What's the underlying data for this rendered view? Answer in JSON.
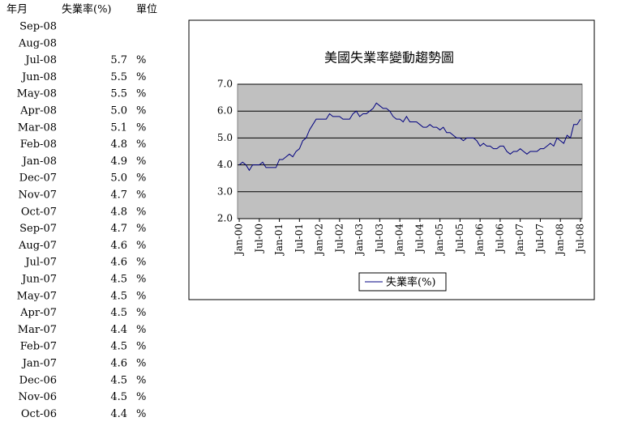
{
  "table": {
    "header": [
      "年月",
      "失業率(%)",
      "單位"
    ],
    "rows": [
      [
        "Sep-08"
      ],
      [
        "Aug-08"
      ],
      [
        "Jul-08",
        "5.7",
        "%"
      ],
      [
        "Jun-08",
        "5.5",
        "%"
      ],
      [
        "May-08",
        "5.5",
        "%"
      ],
      [
        "Apr-08",
        "5.0",
        "%"
      ],
      [
        "Mar-08",
        "5.1",
        "%"
      ],
      [
        "Feb-08",
        "4.8",
        "%"
      ],
      [
        "Jan-08",
        "4.9",
        "%"
      ],
      [
        "Dec-07",
        "5.0",
        "%"
      ],
      [
        "Nov-07",
        "4.7",
        "%"
      ],
      [
        "Oct-07",
        "4.8",
        "%"
      ],
      [
        "Sep-07",
        "4.7",
        "%"
      ],
      [
        "Aug-07",
        "4.6",
        "%"
      ],
      [
        "Jul-07",
        "4.6",
        "%"
      ],
      [
        "Jun-07",
        "4.5",
        "%"
      ],
      [
        "May-07",
        "4.5",
        "%"
      ],
      [
        "Apr-07",
        "4.5",
        "%"
      ],
      [
        "Mar-07",
        "4.4",
        "%"
      ],
      [
        "Feb-07",
        "4.5",
        "%"
      ],
      [
        "Jan-07",
        "4.6",
        "%"
      ],
      [
        "Dec-06",
        "4.5",
        "%"
      ],
      [
        "Nov-06",
        "4.5",
        "%"
      ],
      [
        "Oct-06",
        "4.4",
        "%"
      ]
    ]
  },
  "chart_data": {
    "type": "line",
    "title": "美國失業率變動趨勢圖",
    "categories": [
      "Jan-00",
      null,
      null,
      null,
      null,
      null,
      "Jul-00",
      null,
      null,
      null,
      null,
      null,
      "Jan-01",
      null,
      null,
      null,
      null,
      null,
      "Jul-01",
      null,
      null,
      null,
      null,
      null,
      "Jan-02",
      null,
      null,
      null,
      null,
      null,
      "Jul-02",
      null,
      null,
      null,
      null,
      null,
      "Jan-03",
      null,
      null,
      null,
      null,
      null,
      "Jul-03",
      null,
      null,
      null,
      null,
      null,
      "Jan-04",
      null,
      null,
      null,
      null,
      null,
      "Jul-04",
      null,
      null,
      null,
      null,
      null,
      "Jan-05",
      null,
      null,
      null,
      null,
      null,
      "Jul-05",
      null,
      null,
      null,
      null,
      null,
      "Jan-06",
      null,
      null,
      null,
      null,
      null,
      "Jul-06",
      null,
      null,
      null,
      null,
      null,
      "Jan-07",
      null,
      null,
      null,
      null,
      null,
      "Jul-07",
      null,
      null,
      null,
      null,
      null,
      "Jan-08",
      null,
      null,
      null,
      null,
      null,
      "Jul-08"
    ],
    "series": [
      {
        "name": "失業率(%)",
        "color": "#000080",
        "values": [
          4.0,
          4.1,
          4.0,
          3.8,
          4.0,
          4.0,
          4.0,
          4.1,
          3.9,
          3.9,
          3.9,
          3.9,
          4.2,
          4.2,
          4.3,
          4.4,
          4.3,
          4.5,
          4.6,
          4.9,
          5.0,
          5.3,
          5.5,
          5.7,
          5.7,
          5.7,
          5.7,
          5.9,
          5.8,
          5.8,
          5.8,
          5.7,
          5.7,
          5.7,
          5.9,
          6.0,
          5.8,
          5.9,
          5.9,
          6.0,
          6.1,
          6.3,
          6.2,
          6.1,
          6.1,
          6.0,
          5.8,
          5.7,
          5.7,
          5.6,
          5.8,
          5.6,
          5.6,
          5.6,
          5.5,
          5.4,
          5.4,
          5.5,
          5.4,
          5.4,
          5.3,
          5.4,
          5.2,
          5.2,
          5.1,
          5.0,
          5.0,
          4.9,
          5.0,
          5.0,
          5.0,
          4.9,
          4.7,
          4.8,
          4.7,
          4.7,
          4.6,
          4.6,
          4.7,
          4.7,
          4.5,
          4.4,
          4.5,
          4.5,
          4.6,
          4.5,
          4.4,
          4.5,
          4.5,
          4.5,
          4.6,
          4.6,
          4.7,
          4.8,
          4.7,
          5.0,
          4.9,
          4.8,
          5.1,
          5.0,
          5.5,
          5.5,
          5.7
        ]
      }
    ],
    "ylim": [
      2,
      7
    ],
    "yticks": [
      {
        "value": 2,
        "label": "2.0"
      },
      {
        "value": 3,
        "label": "3.0"
      },
      {
        "value": 4,
        "label": "4.0"
      },
      {
        "value": 5,
        "label": "5.0"
      },
      {
        "value": 6,
        "label": "6.0"
      },
      {
        "value": 7,
        "label": "7.0"
      }
    ],
    "grid": true,
    "legend": "bottom"
  }
}
